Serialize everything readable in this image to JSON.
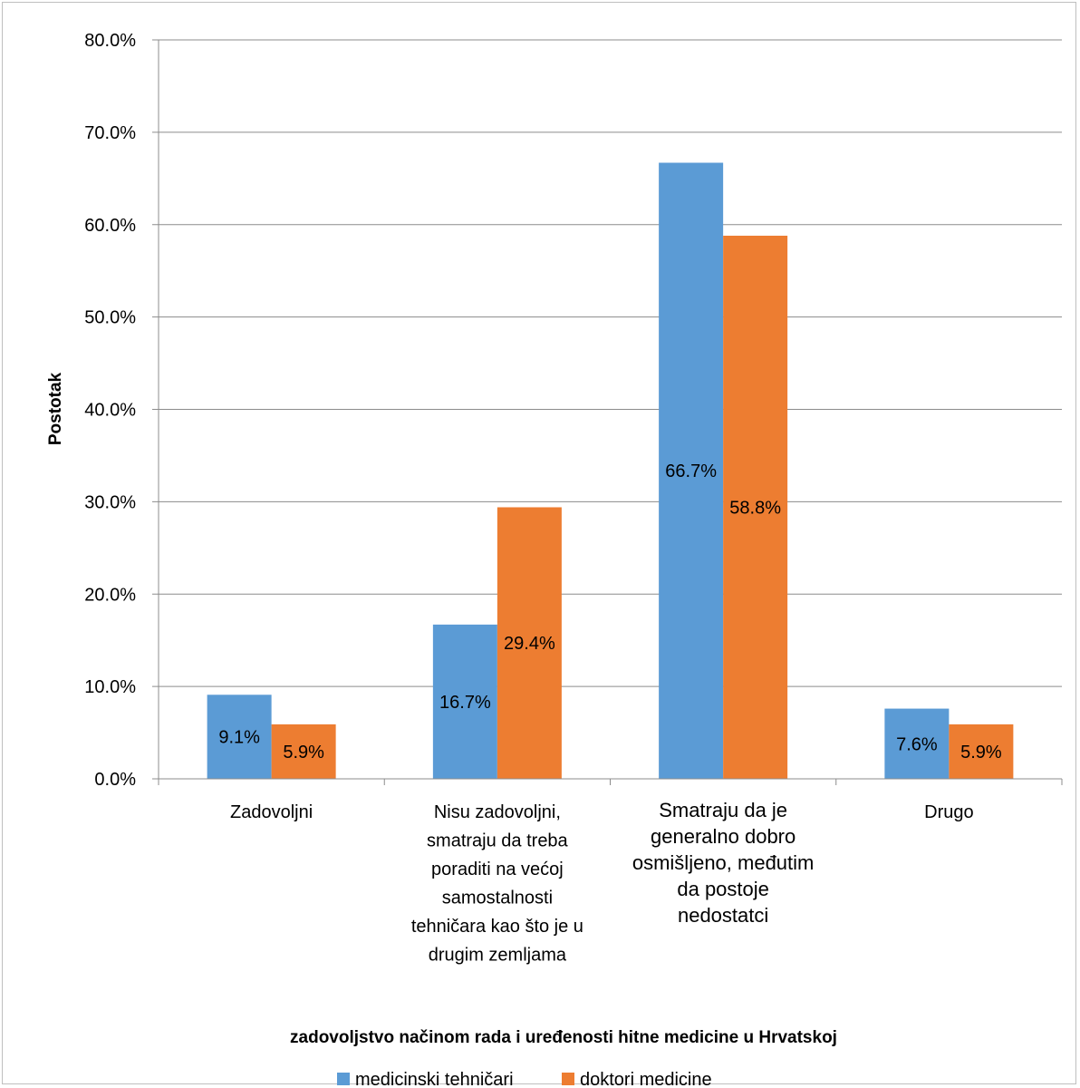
{
  "chart_data": {
    "type": "bar",
    "xlabel": "zadovoljstvo načinom rada i uređenosti hitne medicine u Hrvatskoj",
    "ylabel": "Postotak",
    "ylim": [
      0,
      80
    ],
    "y_ticks": [
      "0.0%",
      "10.0%",
      "20.0%",
      "30.0%",
      "40.0%",
      "50.0%",
      "60.0%",
      "70.0%",
      "80.0%"
    ],
    "grid": true,
    "legend_position": "bottom",
    "categories": [
      [
        "Zadovoljni"
      ],
      [
        "Nisu zadovoljni,",
        "smatraju da treba",
        "poraditi na većoj",
        "samostalnosti",
        "tehničara kao što je u",
        "drugim zemljama"
      ],
      [
        "Smatraju da je",
        "generalno dobro",
        "osmišljeno, međutim",
        "da postoje",
        "nedostatci"
      ],
      [
        "Drugo"
      ]
    ],
    "series": [
      {
        "name": "medicinski tehničari",
        "color": "#5b9bd5",
        "values": [
          9.1,
          16.7,
          66.7,
          7.6
        ],
        "labels": [
          "9.1%",
          "16.7%",
          "66.7%",
          "7.6%"
        ]
      },
      {
        "name": "doktori medicine",
        "color": "#ed7d31",
        "values": [
          5.9,
          29.4,
          58.8,
          5.9
        ],
        "labels": [
          "5.9%",
          "29.4%",
          "58.8%",
          "5.9%"
        ]
      }
    ]
  }
}
